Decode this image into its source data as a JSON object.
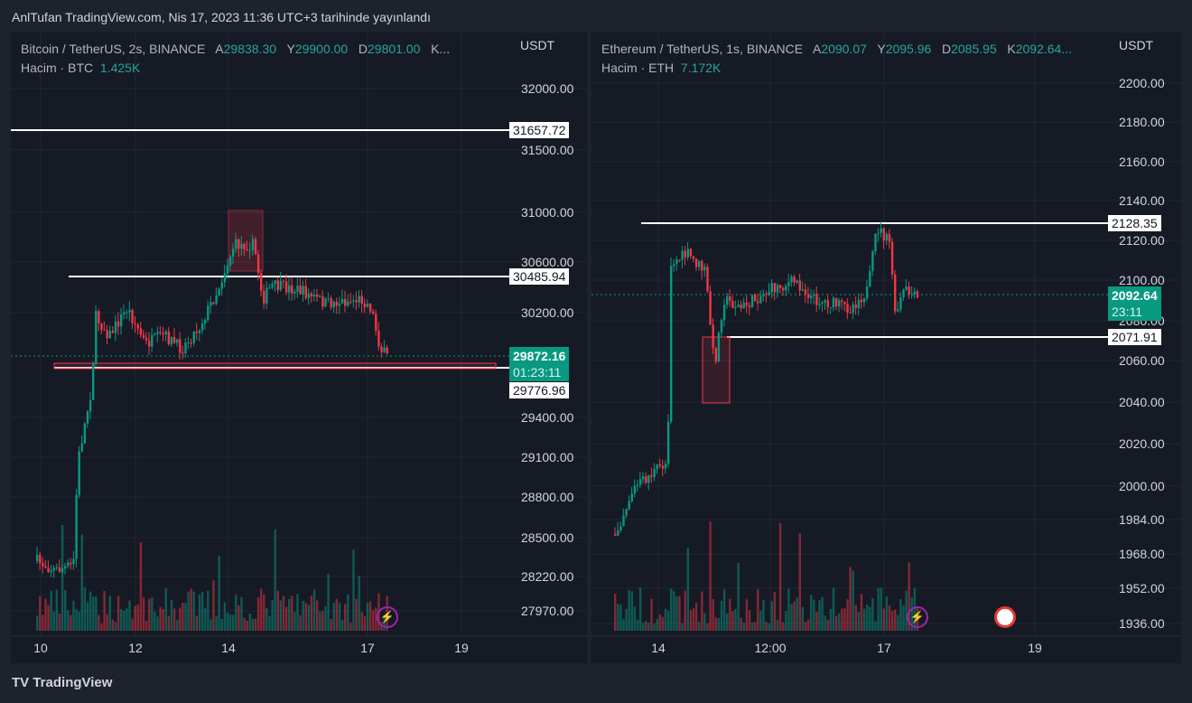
{
  "header": {
    "published": "AnlTufan TradingView.com, Nis 17, 2023 11:36 UTC+3 tarihinde yayınlandı"
  },
  "brand": {
    "name": "TradingView",
    "logo": "TV"
  },
  "colors": {
    "up": "#089981",
    "down": "#f23645",
    "line": "#ffffff",
    "bg": "#161a25"
  },
  "left": {
    "title": "Bitcoin / TetherUS, 2s, BINANCE",
    "o_label": "A",
    "o": "29838.30",
    "h_label": "Y",
    "h": "29900.00",
    "l_label": "D",
    "l": "29801.00",
    "c_label": "K...",
    "volume_label": "Hacim · BTC",
    "volume": "1.425K",
    "unit": "USDT",
    "ticks": [
      "32000.00",
      "31500.00",
      "31000.00",
      "30600.00",
      "30200.00",
      "29400.00",
      "29100.00",
      "28800.00",
      "28500.00",
      "28220.00",
      "27970.00"
    ],
    "levels": [
      "31657.72",
      "30485.94",
      "29776.96"
    ],
    "last_price": "29872.16",
    "countdown": "01:23:11",
    "time_labels": [
      "10",
      "12",
      "14",
      "17",
      "19"
    ]
  },
  "right": {
    "title": "Ethereum / TetherUS, 1s, BINANCE",
    "o_label": "A",
    "o": "2090.07",
    "h_label": "Y",
    "h": "2095.96",
    "l_label": "D",
    "l": "2085.95",
    "c_label": "K",
    "c": "2092.64...",
    "volume_label": "Hacim · ETH",
    "volume": "7.172K",
    "unit": "USDT",
    "ticks": [
      "2200.00",
      "2180.00",
      "2160.00",
      "2140.00",
      "2120.00",
      "2100.00",
      "2080.00",
      "2060.00",
      "2040.00",
      "2020.00",
      "2000.00",
      "1984.00",
      "1968.00",
      "1952.00",
      "1936.00"
    ],
    "levels": [
      "2128.35",
      "2071.91"
    ],
    "last_price": "2092.64",
    "countdown": "23:11",
    "time_labels": [
      "14",
      "12:00",
      "17",
      "19"
    ]
  },
  "icons": {
    "bolt": "lightning-icon",
    "flag": "us-flag-icon"
  }
}
